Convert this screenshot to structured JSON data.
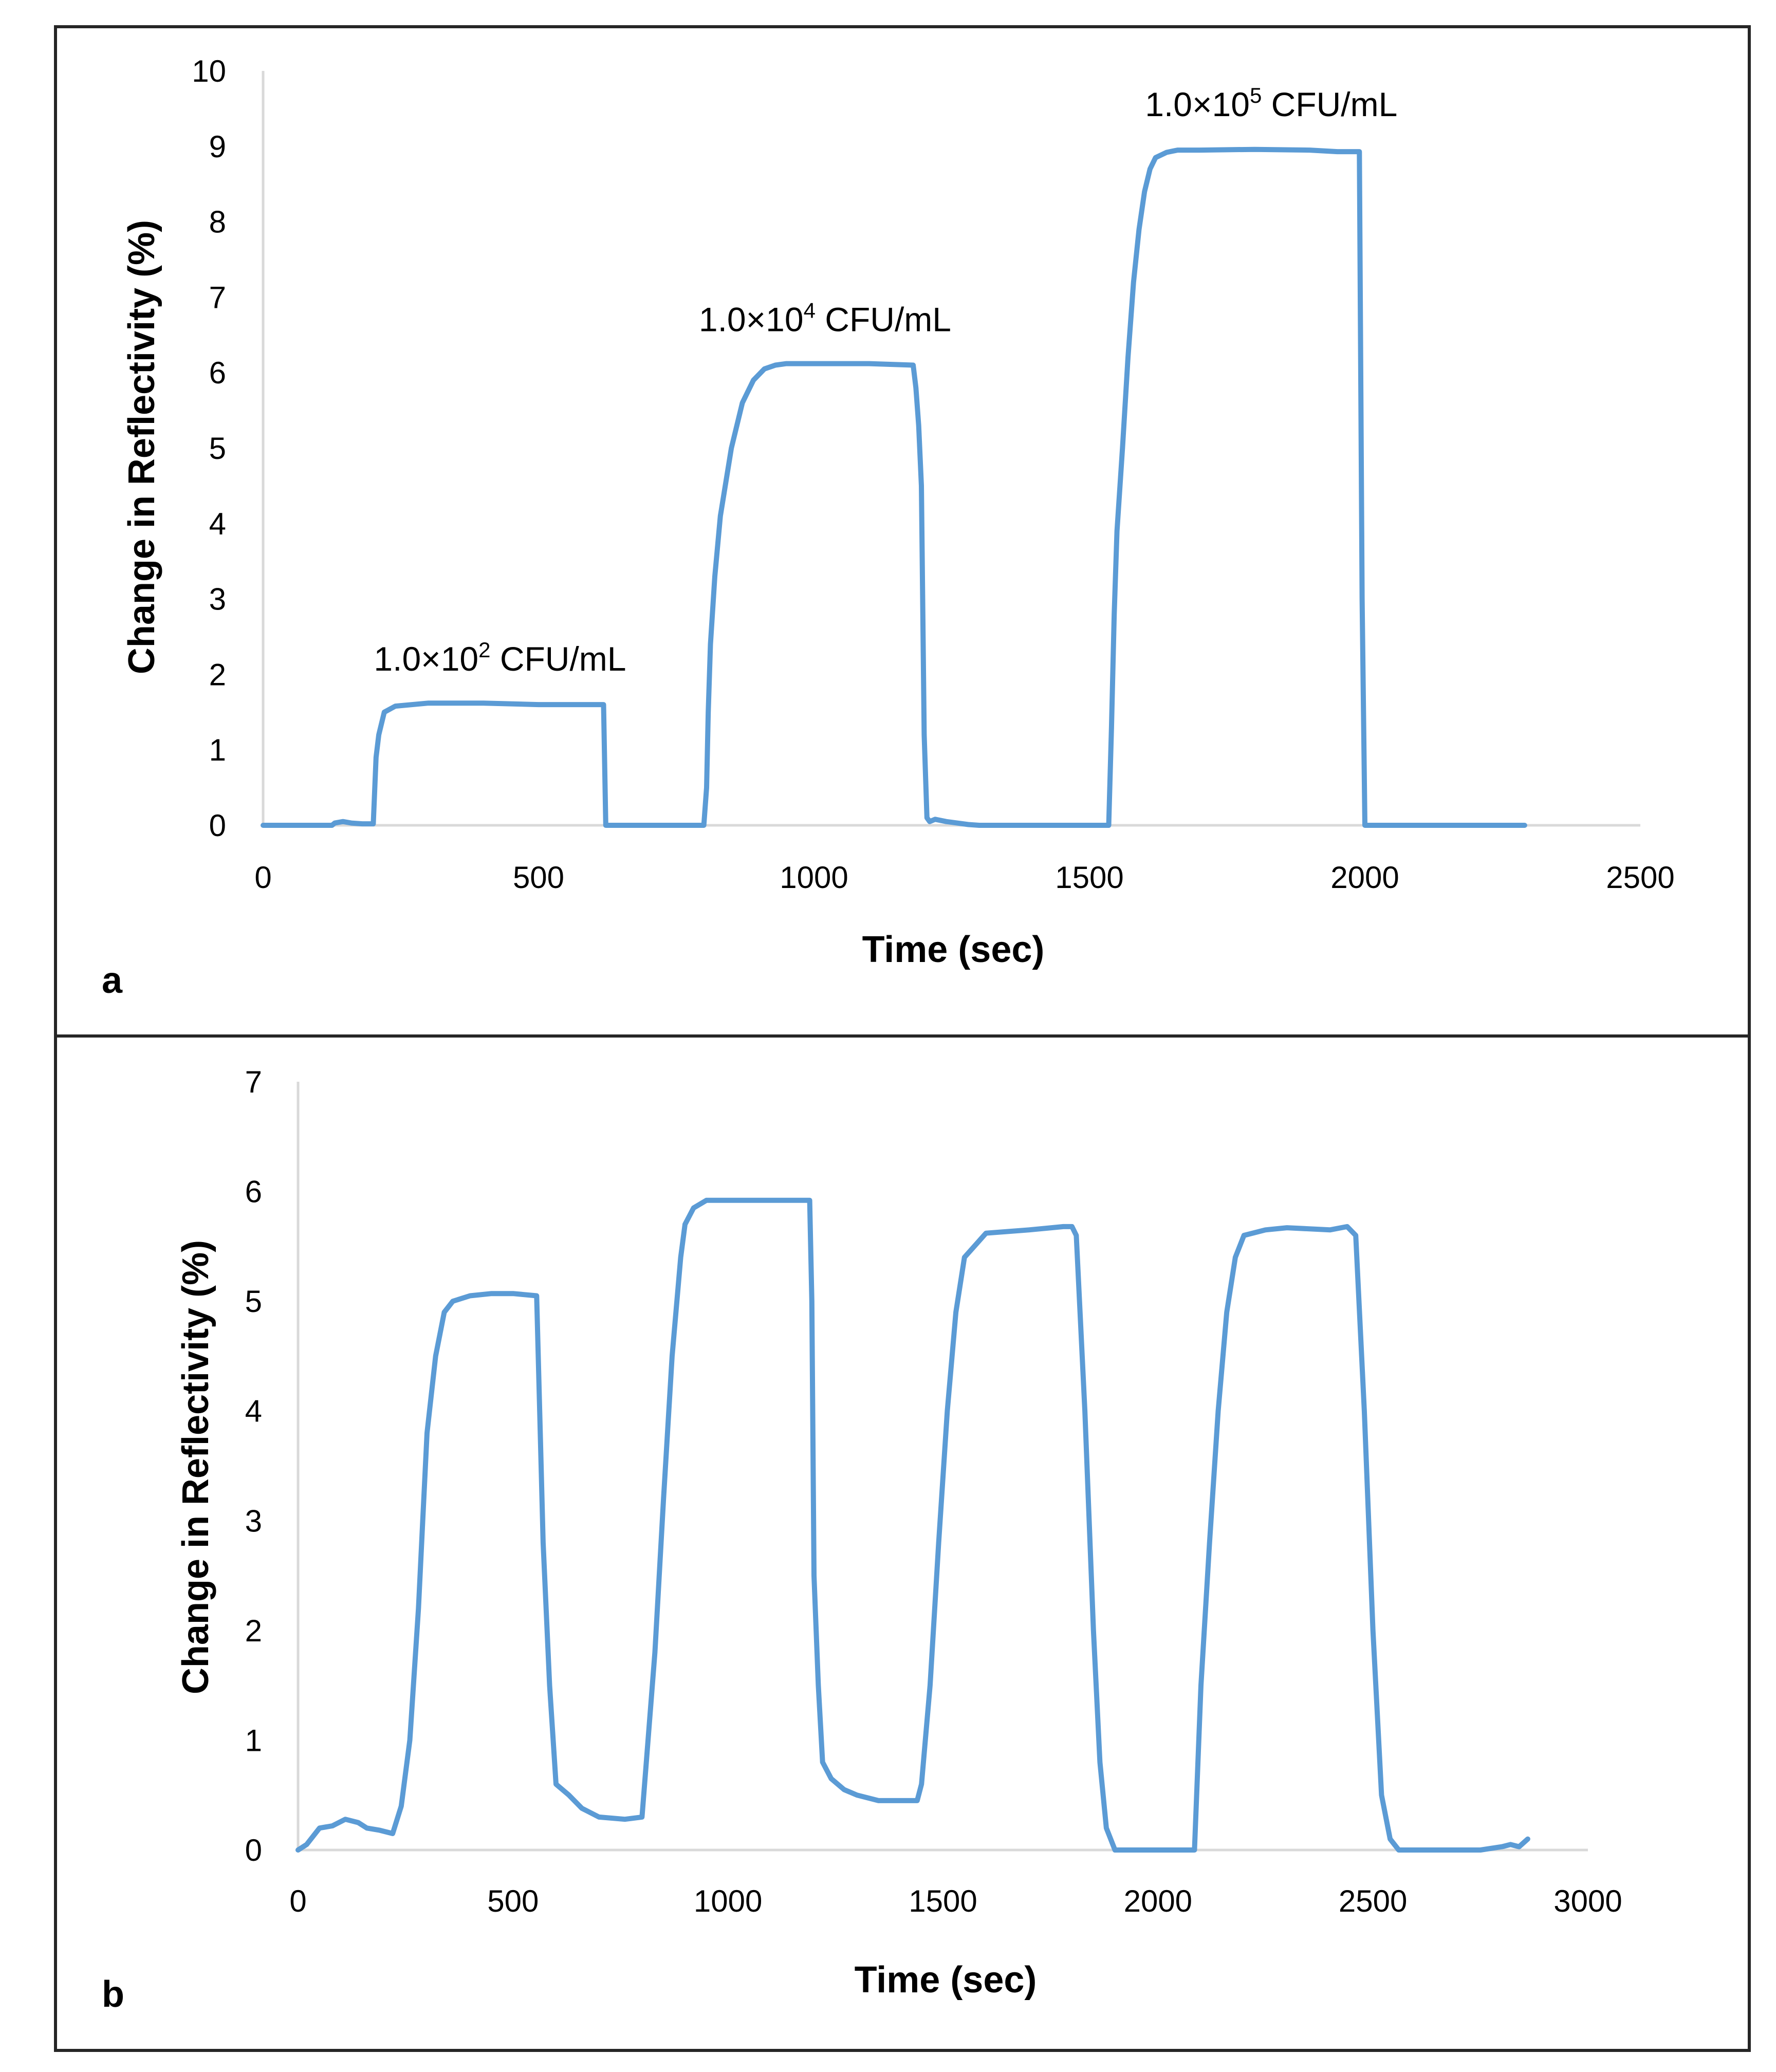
{
  "chart_data": [
    {
      "id": "a",
      "type": "line",
      "panel_label": "a",
      "title": "",
      "xlabel": "Time (sec)",
      "ylabel": "Change in Reflectivity (%)",
      "xlim": [
        0,
        2500
      ],
      "ylim": [
        0,
        10
      ],
      "xticks": [
        0,
        500,
        1000,
        1500,
        2000,
        2500
      ],
      "yticks": [
        0,
        1,
        2,
        3,
        4,
        5,
        6,
        7,
        8,
        9,
        10
      ],
      "color": "#5b9bd5",
      "annotations": [
        {
          "base": "1.0×10",
          "sup": "2",
          "suffix": " CFU/mL",
          "x": 430,
          "y": 2.05
        },
        {
          "base": "1.0×10",
          "sup": "4",
          "suffix": " CFU/mL",
          "x": 1020,
          "y": 6.55
        },
        {
          "base": "1.0×10",
          "sup": "5",
          "suffix": " CFU/mL",
          "x": 1830,
          "y": 9.4
        }
      ],
      "series": [
        {
          "name": "Reflectivity",
          "x": [
            0,
            125,
            130,
            145,
            160,
            180,
            190,
            200,
            205,
            210,
            220,
            240,
            300,
            400,
            500,
            600,
            618,
            622,
            700,
            800,
            805,
            808,
            812,
            820,
            830,
            850,
            870,
            890,
            910,
            930,
            950,
            980,
            1000,
            1100,
            1180,
            1185,
            1190,
            1195,
            1200,
            1205,
            1210,
            1220,
            1240,
            1260,
            1280,
            1300,
            1320,
            1400,
            1500,
            1535,
            1540,
            1545,
            1550,
            1560,
            1570,
            1580,
            1590,
            1600,
            1610,
            1620,
            1640,
            1660,
            1700,
            1800,
            1900,
            1950,
            1990,
            1995,
            2000,
            2100,
            2200,
            2290
          ],
          "y": [
            0,
            0,
            0.03,
            0.05,
            0.03,
            0.02,
            0.02,
            0.02,
            0.9,
            1.2,
            1.5,
            1.58,
            1.62,
            1.62,
            1.6,
            1.6,
            1.6,
            0,
            0,
            0,
            0.5,
            1.5,
            2.4,
            3.3,
            4.1,
            5.0,
            5.6,
            5.9,
            6.05,
            6.1,
            6.12,
            6.12,
            6.12,
            6.12,
            6.1,
            5.8,
            5.3,
            4.5,
            1.2,
            0.1,
            0.05,
            0.08,
            0.05,
            0.03,
            0.01,
            0,
            0,
            0,
            0,
            0,
            1.3,
            2.8,
            3.9,
            5.0,
            6.2,
            7.2,
            7.9,
            8.4,
            8.7,
            8.85,
            8.92,
            8.95,
            8.95,
            8.96,
            8.95,
            8.93,
            8.93,
            3.0,
            0,
            0,
            0,
            0
          ]
        }
      ]
    },
    {
      "id": "b",
      "type": "line",
      "panel_label": "b",
      "title": "",
      "xlabel": "Time (sec)",
      "ylabel": "Change in Reflectivity (%)",
      "xlim": [
        0,
        3000
      ],
      "ylim": [
        0,
        7
      ],
      "xticks": [
        0,
        500,
        1000,
        1500,
        2000,
        2500,
        3000
      ],
      "yticks": [
        0,
        1,
        2,
        3,
        4,
        5,
        6,
        7
      ],
      "color": "#5b9bd5",
      "annotations": [],
      "series": [
        {
          "name": "Reflectivity",
          "x": [
            0,
            20,
            50,
            80,
            110,
            140,
            160,
            190,
            220,
            240,
            260,
            280,
            290,
            300,
            320,
            340,
            360,
            400,
            450,
            500,
            555,
            562,
            570,
            585,
            600,
            630,
            660,
            700,
            760,
            800,
            810,
            830,
            850,
            870,
            890,
            900,
            920,
            950,
            1000,
            1100,
            1190,
            1195,
            1200,
            1210,
            1220,
            1240,
            1270,
            1300,
            1350,
            1400,
            1440,
            1450,
            1470,
            1490,
            1510,
            1530,
            1550,
            1600,
            1700,
            1780,
            1800,
            1810,
            1830,
            1850,
            1865,
            1880,
            1900,
            2000,
            2080,
            2085,
            2100,
            2120,
            2140,
            2160,
            2180,
            2200,
            2250,
            2300,
            2400,
            2440,
            2460,
            2480,
            2500,
            2520,
            2540,
            2560,
            2600,
            2700,
            2750,
            2800,
            2820,
            2840,
            2860
          ],
          "y": [
            0,
            0.05,
            0.2,
            0.22,
            0.28,
            0.25,
            0.2,
            0.18,
            0.15,
            0.4,
            1.0,
            2.2,
            3.0,
            3.8,
            4.5,
            4.9,
            5.0,
            5.05,
            5.07,
            5.07,
            5.05,
            4.0,
            2.8,
            1.5,
            0.6,
            0.5,
            0.38,
            0.3,
            0.28,
            0.3,
            0.8,
            1.8,
            3.2,
            4.5,
            5.4,
            5.7,
            5.85,
            5.92,
            5.92,
            5.92,
            5.92,
            5.0,
            2.5,
            1.5,
            0.8,
            0.65,
            0.55,
            0.5,
            0.45,
            0.45,
            0.45,
            0.6,
            1.5,
            2.8,
            4.0,
            4.9,
            5.4,
            5.62,
            5.65,
            5.68,
            5.68,
            5.6,
            4.0,
            2.0,
            0.8,
            0.2,
            0,
            0,
            0,
            0,
            1.5,
            2.8,
            4.0,
            4.9,
            5.4,
            5.6,
            5.65,
            5.67,
            5.65,
            5.68,
            5.6,
            4.0,
            2.0,
            0.5,
            0.1,
            0,
            0,
            0,
            0,
            0.03,
            0.05,
            0.03,
            0.1
          ]
        }
      ]
    }
  ]
}
